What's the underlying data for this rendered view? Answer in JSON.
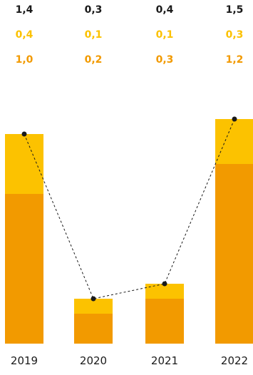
{
  "chart_data": {
    "type": "bar",
    "stacked": true,
    "categories": [
      "2019",
      "2020",
      "2021",
      "2022"
    ],
    "series": [
      {
        "values": [
          1.0,
          0.2,
          0.3,
          1.2
        ],
        "color": "#F29A00"
      },
      {
        "values": [
          0.4,
          0.1,
          0.1,
          0.3
        ],
        "color": "#FCC200"
      }
    ],
    "totals": {
      "values": [
        1.4,
        0.3,
        0.4,
        1.5
      ],
      "color": "#1A1A1A",
      "line_style": "dashed",
      "marker": "dot"
    },
    "header_rows": [
      {
        "labels": [
          "1,4",
          "0,3",
          "0,4",
          "1,5"
        ],
        "color": "#1A1A1A"
      },
      {
        "labels": [
          "0,4",
          "0,1",
          "0,1",
          "0,3"
        ],
        "color": "#FCC200"
      },
      {
        "labels": [
          "1,0",
          "0,2",
          "0,3",
          "1,2"
        ],
        "color": "#F29A00"
      }
    ],
    "title": "",
    "xlabel": "",
    "ylabel": "",
    "ylim": [
      0,
      1.5
    ],
    "grid": false,
    "legend": "none"
  }
}
